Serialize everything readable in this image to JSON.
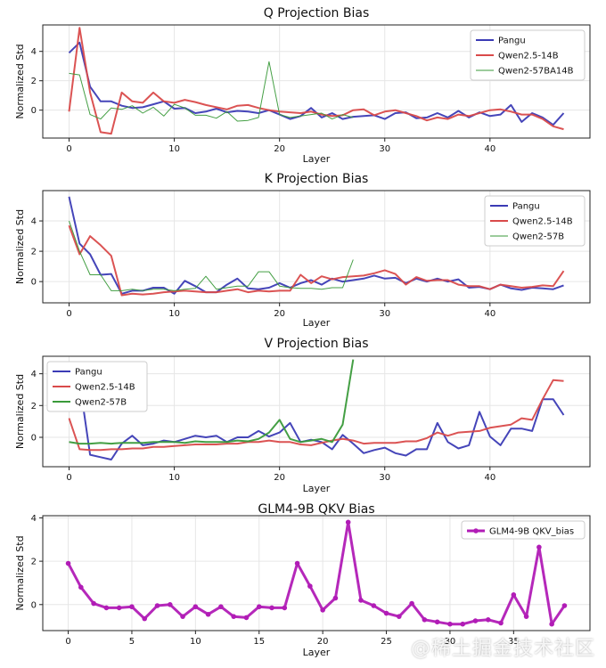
{
  "watermark": "@稀土掘金技术社区",
  "chart_data": [
    {
      "type": "line",
      "title": "Q Projection Bias",
      "xlabel": "Layer",
      "ylabel": "Normalized Std",
      "xlim": [
        -2.5,
        49.5
      ],
      "ylim": [
        -1.9,
        5.8
      ],
      "xticks": [
        0,
        10,
        20,
        30,
        40
      ],
      "yticks": [
        0,
        2,
        4
      ],
      "grid": true,
      "legend": "top-right",
      "series": [
        {
          "name": "Pangu",
          "color": "#3b3bb5",
          "width": 2,
          "x": [
            0,
            1,
            2,
            3,
            4,
            5,
            6,
            7,
            8,
            9,
            10,
            11,
            12,
            13,
            14,
            15,
            16,
            17,
            18,
            19,
            20,
            21,
            22,
            23,
            24,
            25,
            26,
            27,
            28,
            29,
            30,
            31,
            32,
            33,
            34,
            35,
            36,
            37,
            38,
            39,
            40,
            41,
            42,
            43,
            44,
            45,
            46,
            47
          ],
          "y": [
            3.9,
            4.6,
            1.6,
            0.6,
            0.6,
            0.3,
            0.15,
            0.2,
            0.4,
            0.6,
            0.1,
            0.15,
            -0.2,
            -0.1,
            0.1,
            -0.15,
            -0.05,
            -0.1,
            -0.2,
            0,
            -0.3,
            -0.6,
            -0.4,
            0.15,
            -0.5,
            -0.2,
            -0.6,
            -0.45,
            -0.4,
            -0.35,
            -0.6,
            -0.2,
            -0.15,
            -0.55,
            -0.5,
            -0.2,
            -0.5,
            -0.05,
            -0.5,
            -0.15,
            -0.4,
            -0.3,
            0.35,
            -0.8,
            -0.2,
            -0.5,
            -1.0,
            -0.2
          ]
        },
        {
          "name": "Qwen2.5-14B",
          "color": "#d94a4a",
          "width": 2,
          "x": [
            0,
            1,
            2,
            3,
            4,
            5,
            6,
            7,
            8,
            9,
            10,
            11,
            12,
            13,
            14,
            15,
            16,
            17,
            18,
            19,
            20,
            21,
            22,
            23,
            24,
            25,
            26,
            27,
            28,
            29,
            30,
            31,
            32,
            33,
            34,
            35,
            36,
            37,
            38,
            39,
            40,
            41,
            42,
            43,
            44,
            45,
            46,
            47
          ],
          "y": [
            -0.1,
            5.6,
            1.2,
            -1.5,
            -1.6,
            1.2,
            0.6,
            0.5,
            1.2,
            0.6,
            0.5,
            0.7,
            0.55,
            0.35,
            0.2,
            0.05,
            0.3,
            0.35,
            0.15,
            0,
            -0.1,
            -0.15,
            -0.2,
            -0.1,
            -0.3,
            -0.4,
            -0.35,
            0,
            0.05,
            -0.35,
            -0.1,
            0,
            -0.2,
            -0.4,
            -0.7,
            -0.5,
            -0.6,
            -0.3,
            -0.4,
            -0.2,
            0,
            0.05,
            -0.1,
            -0.3,
            -0.3,
            -0.6,
            -1.1,
            -1.3
          ]
        },
        {
          "name": "Qwen2-57BA14B",
          "color": "#3a9a3a",
          "width": 1,
          "x": [
            0,
            1,
            2,
            3,
            4,
            5,
            6,
            7,
            8,
            9,
            10,
            11,
            12,
            13,
            14,
            15,
            16,
            17,
            18,
            19,
            20,
            21,
            22,
            23,
            24,
            25,
            26,
            27
          ],
          "y": [
            2.5,
            2.4,
            -0.3,
            -0.6,
            0.15,
            0.05,
            0.3,
            -0.2,
            0.2,
            -0.4,
            0.4,
            0.15,
            -0.35,
            -0.35,
            -0.55,
            -0.1,
            -0.75,
            -0.7,
            -0.5,
            3.3,
            -0.3,
            -0.5,
            -0.4,
            -0.3,
            -0.2,
            -0.6,
            -0.3,
            -0.5
          ]
        }
      ]
    },
    {
      "type": "line",
      "title": "K Projection Bias",
      "xlabel": "Layer",
      "ylabel": "Normalized Std",
      "xlim": [
        -2.5,
        49.5
      ],
      "ylim": [
        -1.4,
        6.0
      ],
      "xticks": [
        0,
        10,
        20,
        30,
        40
      ],
      "yticks": [
        0,
        2,
        4
      ],
      "grid": true,
      "legend": "top-right",
      "series": [
        {
          "name": "Pangu",
          "color": "#3b3bb5",
          "width": 2,
          "x": [
            0,
            1,
            2,
            3,
            4,
            5,
            6,
            7,
            8,
            9,
            10,
            11,
            12,
            13,
            14,
            15,
            16,
            17,
            18,
            19,
            20,
            21,
            22,
            23,
            24,
            25,
            26,
            27,
            28,
            29,
            30,
            31,
            32,
            33,
            34,
            35,
            36,
            37,
            38,
            39,
            40,
            41,
            42,
            43,
            44,
            45,
            46,
            47
          ],
          "y": [
            5.6,
            2.5,
            1.8,
            0.45,
            0.5,
            -0.8,
            -0.6,
            -0.6,
            -0.4,
            -0.4,
            -0.8,
            0.05,
            -0.3,
            -0.7,
            -0.7,
            -0.2,
            0.2,
            -0.45,
            -0.5,
            -0.4,
            -0.1,
            -0.4,
            -0.1,
            0.1,
            -0.2,
            0.2,
            0,
            0.1,
            0.2,
            0.4,
            0.2,
            0.25,
            -0.1,
            0.2,
            0,
            0.2,
            0,
            0.15,
            -0.4,
            -0.35,
            -0.5,
            -0.2,
            -0.45,
            -0.55,
            -0.4,
            -0.45,
            -0.5,
            -0.25
          ]
        },
        {
          "name": "Qwen2.5-14B",
          "color": "#d94a4a",
          "width": 2,
          "x": [
            0,
            1,
            2,
            3,
            4,
            5,
            6,
            7,
            8,
            9,
            10,
            11,
            12,
            13,
            14,
            15,
            16,
            17,
            18,
            19,
            20,
            21,
            22,
            23,
            24,
            25,
            26,
            27,
            28,
            29,
            30,
            31,
            32,
            33,
            34,
            35,
            36,
            37,
            38,
            39,
            40,
            41,
            42,
            43,
            44,
            45,
            46,
            47
          ],
          "y": [
            3.7,
            1.8,
            3.0,
            2.4,
            1.7,
            -0.9,
            -0.8,
            -0.85,
            -0.8,
            -0.7,
            -0.65,
            -0.6,
            -0.65,
            -0.7,
            -0.7,
            -0.6,
            -0.5,
            -0.7,
            -0.6,
            -0.65,
            -0.6,
            -0.6,
            0.45,
            -0.1,
            0.35,
            0.15,
            0.3,
            0.35,
            0.4,
            0.55,
            0.75,
            0.5,
            -0.2,
            0.3,
            0.05,
            0.1,
            0.1,
            -0.2,
            -0.3,
            -0.3,
            -0.5,
            -0.2,
            -0.3,
            -0.4,
            -0.35,
            -0.25,
            -0.3,
            0.7
          ]
        },
        {
          "name": "Qwen2-57B",
          "color": "#3a9a3a",
          "width": 1,
          "x": [
            0,
            1,
            2,
            3,
            4,
            5,
            6,
            7,
            8,
            9,
            10,
            11,
            12,
            13,
            14,
            15,
            16,
            17,
            18,
            19,
            20,
            21,
            22,
            23,
            24,
            25,
            26,
            27
          ],
          "y": [
            4.0,
            2.0,
            0.45,
            0.45,
            -0.6,
            -0.6,
            -0.5,
            -0.6,
            -0.5,
            -0.5,
            -0.6,
            -0.5,
            -0.45,
            0.35,
            -0.5,
            -0.4,
            -0.3,
            -0.3,
            0.65,
            0.65,
            -0.3,
            -0.4,
            -0.45,
            -0.45,
            -0.5,
            -0.4,
            -0.4,
            1.45
          ]
        }
      ]
    },
    {
      "type": "line",
      "title": "V Projection Bias",
      "xlabel": "Layer",
      "ylabel": "Normalized Std",
      "xlim": [
        -2.5,
        49.5
      ],
      "ylim": [
        -1.85,
        5.1
      ],
      "xticks": [
        0,
        10,
        20,
        30,
        40
      ],
      "yticks": [
        0,
        2,
        4
      ],
      "grid": true,
      "legend": "top-left",
      "series": [
        {
          "name": "Pangu",
          "color": "#3b3bb5",
          "width": 2,
          "x": [
            0,
            1,
            2,
            3,
            4,
            5,
            6,
            7,
            8,
            9,
            10,
            11,
            12,
            13,
            14,
            15,
            16,
            17,
            18,
            19,
            20,
            21,
            22,
            23,
            24,
            25,
            26,
            27,
            28,
            29,
            30,
            31,
            32,
            33,
            34,
            35,
            36,
            37,
            38,
            39,
            40,
            41,
            42,
            43,
            44,
            45,
            46,
            47
          ],
          "y": [
            1.8,
            3.5,
            -1.1,
            -1.25,
            -1.4,
            -0.4,
            0.1,
            -0.5,
            -0.4,
            -0.2,
            -0.3,
            -0.1,
            0.1,
            0,
            0.1,
            -0.3,
            0,
            0,
            0.4,
            0.05,
            0.3,
            0.9,
            -0.3,
            -0.15,
            -0.3,
            -0.75,
            0.15,
            -0.4,
            -1.0,
            -0.8,
            -0.65,
            -1.0,
            -1.15,
            -0.75,
            -0.75,
            0.9,
            -0.3,
            -0.7,
            -0.5,
            1.6,
            0.05,
            -0.5,
            0.55,
            0.55,
            0.4,
            2.4,
            2.4,
            1.4
          ]
        },
        {
          "name": "Qwen2.5-14B",
          "color": "#d94a4a",
          "width": 2,
          "x": [
            0,
            1,
            2,
            3,
            4,
            5,
            6,
            7,
            8,
            9,
            10,
            11,
            12,
            13,
            14,
            15,
            16,
            17,
            18,
            19,
            20,
            21,
            22,
            23,
            24,
            25,
            26,
            27,
            28,
            29,
            30,
            31,
            32,
            33,
            34,
            35,
            36,
            37,
            38,
            39,
            40,
            41,
            42,
            43,
            44,
            45,
            46,
            47
          ],
          "y": [
            1.2,
            -0.75,
            -0.8,
            -0.8,
            -0.75,
            -0.75,
            -0.7,
            -0.7,
            -0.6,
            -0.6,
            -0.55,
            -0.5,
            -0.45,
            -0.45,
            -0.45,
            -0.4,
            -0.4,
            -0.3,
            -0.3,
            -0.2,
            -0.3,
            -0.3,
            -0.45,
            -0.5,
            -0.35,
            -0.2,
            -0.1,
            -0.2,
            -0.4,
            -0.35,
            -0.35,
            -0.35,
            -0.25,
            -0.25,
            -0.05,
            0.3,
            0.1,
            0.3,
            0.35,
            0.4,
            0.6,
            0.7,
            0.8,
            1.2,
            1.1,
            2.4,
            3.6,
            3.55
          ]
        },
        {
          "name": "Qwen2-57B",
          "color": "#3a9a3a",
          "width": 2,
          "x": [
            0,
            1,
            2,
            3,
            4,
            5,
            6,
            7,
            8,
            9,
            10,
            11,
            12,
            13,
            14,
            15,
            16,
            17,
            18,
            19,
            20,
            21,
            22,
            23,
            24,
            25,
            26,
            27
          ],
          "y": [
            -0.3,
            -0.4,
            -0.4,
            -0.35,
            -0.4,
            -0.35,
            -0.35,
            -0.35,
            -0.3,
            -0.3,
            -0.3,
            -0.35,
            -0.25,
            -0.3,
            -0.3,
            -0.3,
            -0.2,
            -0.25,
            -0.1,
            0.3,
            1.1,
            -0.1,
            -0.3,
            -0.2,
            -0.1,
            -0.3,
            0.8,
            4.9
          ]
        }
      ]
    },
    {
      "type": "line",
      "title": "GLM4-9B QKV Bias",
      "xlabel": "Layer",
      "ylabel": "Normalized Std",
      "xlim": [
        -2,
        41
      ],
      "ylim": [
        -1.2,
        4.1
      ],
      "xticks": [
        0,
        5,
        10,
        15,
        20,
        25,
        30,
        35
      ],
      "yticks": [
        0,
        2,
        4
      ],
      "grid": true,
      "legend": "top-right",
      "series": [
        {
          "name": "GLM4-9B QKV_bias",
          "color": "#b11cb6",
          "width": 3,
          "marker": true,
          "x": [
            0,
            1,
            2,
            3,
            4,
            5,
            6,
            7,
            8,
            9,
            10,
            11,
            12,
            13,
            14,
            15,
            16,
            17,
            18,
            19,
            20,
            21,
            22,
            23,
            24,
            25,
            26,
            27,
            28,
            29,
            30,
            31,
            32,
            33,
            34,
            35,
            36,
            37,
            38,
            39
          ],
          "y": [
            1.9,
            0.8,
            0.05,
            -0.15,
            -0.15,
            -0.1,
            -0.65,
            -0.05,
            0,
            -0.55,
            -0.1,
            -0.45,
            -0.1,
            -0.55,
            -0.6,
            -0.1,
            -0.15,
            -0.15,
            1.9,
            0.85,
            -0.25,
            0.3,
            3.8,
            0.2,
            -0.05,
            -0.4,
            -0.55,
            0.05,
            -0.7,
            -0.8,
            -0.9,
            -0.9,
            -0.75,
            -0.7,
            -0.85,
            0.45,
            -0.55,
            2.65,
            -0.9,
            -0.05
          ]
        }
      ]
    }
  ],
  "panels_layout_note": ""
}
